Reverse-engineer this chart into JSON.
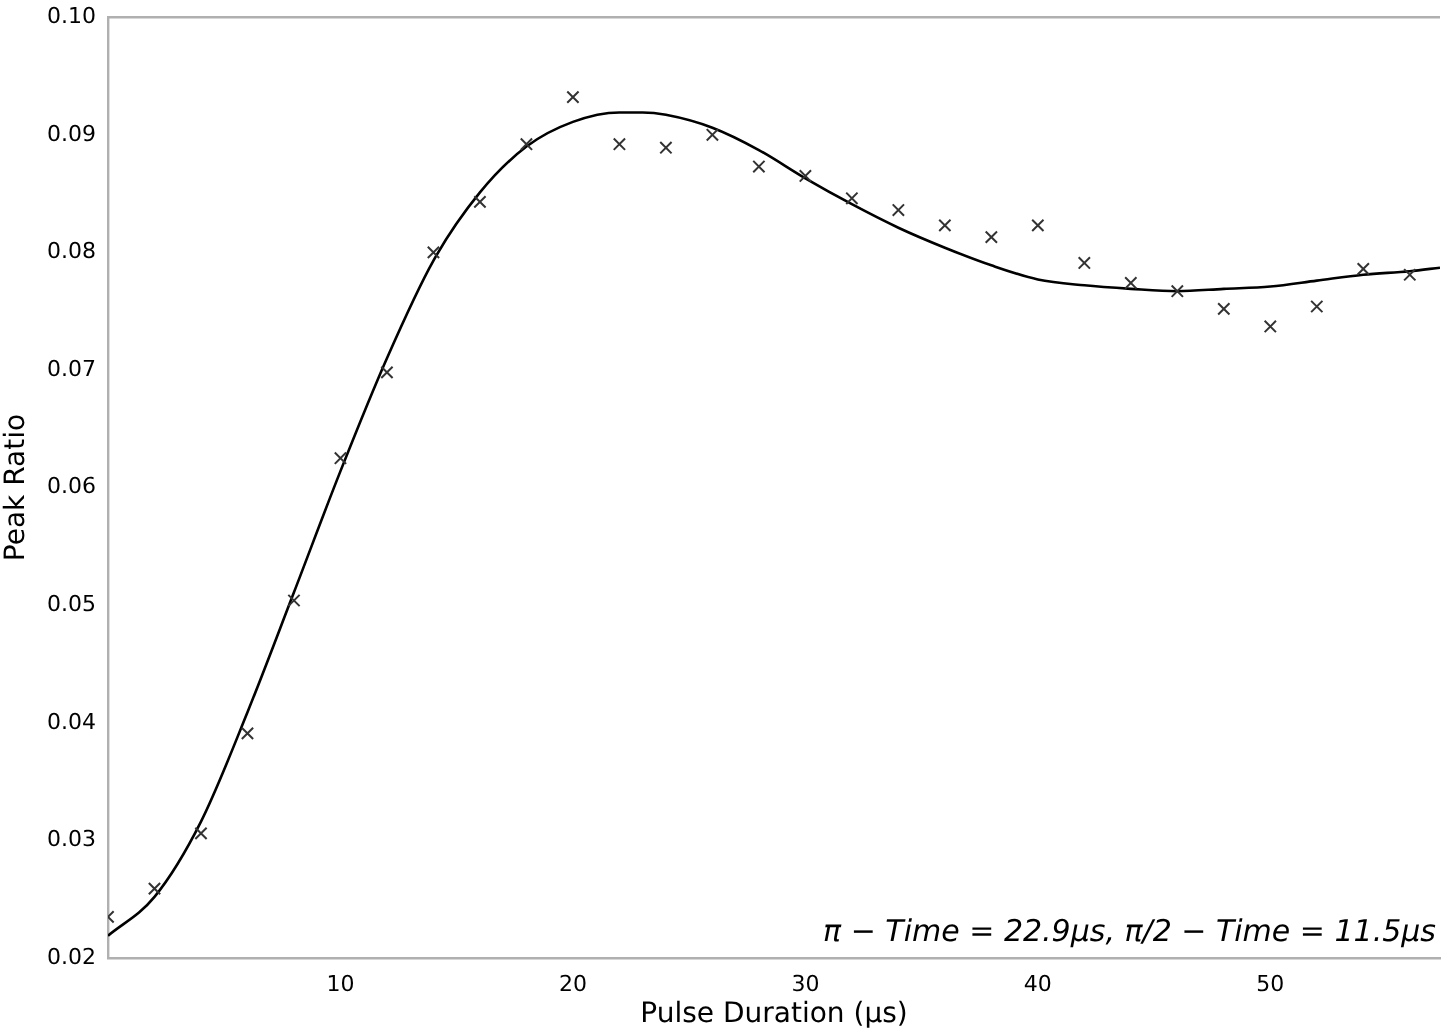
{
  "chart_data": {
    "type": "scatter",
    "xlabel": "Pulse Duration (μs)",
    "ylabel": "Peak Ratio",
    "xlim": [
      0,
      57.3
    ],
    "xticks": [
      10,
      20,
      30,
      40,
      50
    ],
    "ylim": [
      0.02,
      0.1
    ],
    "yticks": [
      0.02,
      0.03,
      0.04,
      0.05,
      0.06,
      0.07,
      0.08,
      0.09,
      {
        "value": 0.1,
        "label": "0.10"
      }
    ],
    "grid": false,
    "legend": false,
    "annotations": [
      "π − Time = 22.9μs, π/2 − Time = 11.5μs"
    ],
    "series": [
      {
        "marker": "cross",
        "color": "#333333",
        "x": [
          0,
          2,
          4,
          6,
          8,
          10,
          12,
          14,
          16,
          18,
          20,
          22,
          24,
          26,
          28,
          30,
          32,
          34,
          36,
          38,
          40,
          42,
          44,
          46,
          48,
          50,
          52,
          54,
          56
        ],
        "values": [
          0.0235,
          0.0259,
          0.0306,
          0.0391,
          0.0504,
          0.0625,
          0.0698,
          0.08,
          0.0843,
          0.0892,
          0.0932,
          0.0892,
          0.0889,
          0.09,
          0.0873,
          0.0865,
          0.0846,
          0.0836,
          0.0823,
          0.0813,
          0.0823,
          0.0791,
          0.0774,
          0.0767,
          0.0752,
          0.0737,
          0.0754,
          0.0786,
          0.0781
        ]
      },
      {
        "type": "line",
        "marker": "none",
        "line_style": "solid",
        "color": "#000000",
        "x": [
          0,
          2,
          4,
          6,
          8,
          10,
          12,
          14,
          16,
          18,
          20,
          22,
          23,
          24,
          26,
          28,
          30,
          32,
          34,
          36,
          38,
          40,
          42,
          44,
          46,
          48,
          50,
          52,
          54,
          56,
          57.3
        ],
        "values": [
          0.0219,
          0.0252,
          0.0316,
          0.0409,
          0.0511,
          0.0614,
          0.071,
          0.0793,
          0.0851,
          0.089,
          0.0911,
          0.0919,
          0.0919,
          0.0917,
          0.0906,
          0.0887,
          0.0863,
          0.0841,
          0.0821,
          0.0804,
          0.0789,
          0.0777,
          0.0772,
          0.0769,
          0.0767,
          0.0769,
          0.0771,
          0.0776,
          0.0781,
          0.0784,
          0.0787
        ]
      }
    ]
  }
}
